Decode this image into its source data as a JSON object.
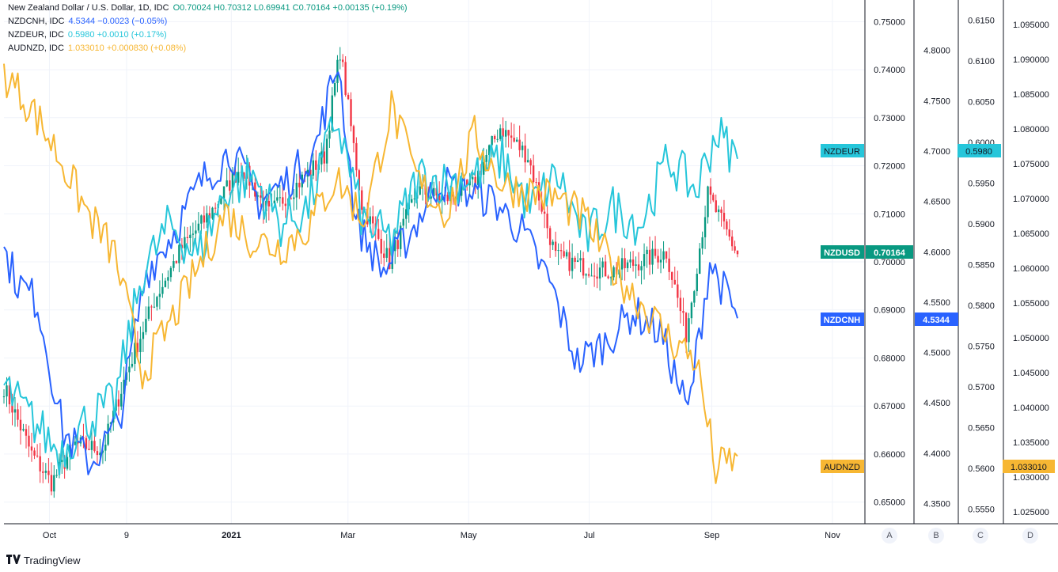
{
  "legend": [
    {
      "symbol": "New Zealand Dollar / U.S. Dollar, 1D, IDC",
      "values": "O0.70024  H0.70312  L0.69941  C0.70164  +0.00135 (+0.19%)",
      "color": "#089981"
    },
    {
      "symbol": "NZDCNH, IDC",
      "values": "4.5344  −0.0023 (−0.05%)",
      "color": "#2962ff"
    },
    {
      "symbol": "NZDEUR, IDC",
      "values": "0.5980  +0.0010 (+0.17%)",
      "color": "#26c6da"
    },
    {
      "symbol": "AUDNZD, IDC",
      "values": "1.033010  +0.000830 (+0.08%)",
      "color": "#f7b733"
    }
  ],
  "time_axis": [
    "Oct",
    "9",
    "2021",
    "Mar",
    "May",
    "Jul",
    "Sep",
    "Nov"
  ],
  "scales": {
    "A": [
      "0.75000",
      "0.74000",
      "0.73000",
      "0.72000",
      "0.71000",
      "0.70000",
      "0.69000",
      "0.68000",
      "0.67000",
      "0.66000",
      "0.65000"
    ],
    "B": [
      "4.8000",
      "4.7500",
      "4.7000",
      "4.6500",
      "4.6000",
      "4.5500",
      "4.5000",
      "4.4500",
      "4.4000",
      "4.3500"
    ],
    "C": [
      "0.6150",
      "0.6100",
      "0.6050",
      "0.6000",
      "0.5950",
      "0.5900",
      "0.5850",
      "0.5800",
      "0.5750",
      "0.5700",
      "0.5650",
      "0.5600",
      "0.5550"
    ],
    "D": [
      "1.095000",
      "1.090000",
      "1.085000",
      "1.080000",
      "1.075000",
      "1.070000",
      "1.065000",
      "1.060000",
      "1.055000",
      "1.050000",
      "1.045000",
      "1.040000",
      "1.035000",
      "1.030000",
      "1.025000"
    ]
  },
  "scale_buttons": [
    "A",
    "B",
    "C",
    "D"
  ],
  "price_labels": {
    "nzdeur_tag": "NZDEUR",
    "nzdeur_val": "0.5980",
    "nzdusd_tag": "NZDUSD",
    "nzdusd_val": "0.70164",
    "nzdcnh_tag": "NZDCNH",
    "nzdcnh_val": "4.5344",
    "audnzd_tag": "AUDNZD",
    "audnzd_val": "1.033010"
  },
  "brand": "TradingView",
  "colors": {
    "up": "#089981",
    "down": "#f23645",
    "nzdcnh": "#2962ff",
    "nzdeur": "#26c6da",
    "audnzd": "#f7b733"
  },
  "chart_data": {
    "type": "line",
    "title": "New Zealand Dollar / U.S. Dollar, 1D, IDC",
    "x_range": [
      "2020-09-08",
      "2021-09-14"
    ],
    "x_ticks": [
      "Oct",
      "9",
      "2021",
      "Mar",
      "May",
      "Jul",
      "Sep",
      "Nov"
    ],
    "grid": true,
    "series": [
      {
        "name": "New Zealand Dollar / U.S. Dollar",
        "style": "candles",
        "scale": "A",
        "ylim": [
          0.6455,
          0.7545
        ],
        "x": [
          "2020-09-08",
          "2020-09-22",
          "2020-10-02",
          "2020-10-14",
          "2020-10-28",
          "2020-11-09",
          "2020-11-23",
          "2020-12-07",
          "2020-12-21",
          "2021-01-06",
          "2021-01-20",
          "2021-02-03",
          "2021-02-17",
          "2021-02-25",
          "2021-03-08",
          "2021-03-22",
          "2021-04-05",
          "2021-04-19",
          "2021-05-03",
          "2021-05-17",
          "2021-05-31",
          "2021-06-14",
          "2021-06-28",
          "2021-07-12",
          "2021-07-26",
          "2021-08-09",
          "2021-08-19",
          "2021-08-30",
          "2021-09-14"
        ],
        "values": [
          0.674,
          0.66,
          0.654,
          0.662,
          0.661,
          0.677,
          0.692,
          0.703,
          0.71,
          0.72,
          0.71,
          0.716,
          0.722,
          0.744,
          0.712,
          0.7,
          0.715,
          0.713,
          0.716,
          0.728,
          0.722,
          0.701,
          0.699,
          0.698,
          0.7,
          0.702,
          0.685,
          0.714,
          0.7016
        ]
      },
      {
        "name": "NZDCNH",
        "style": "line",
        "scale": "B",
        "ylim": [
          4.33,
          4.85
        ],
        "x": [
          "2020-09-08",
          "2020-09-15",
          "2020-09-25",
          "2020-10-08",
          "2020-10-22",
          "2020-11-05",
          "2020-11-19",
          "2020-12-03",
          "2020-12-17",
          "2021-01-01",
          "2021-01-15",
          "2021-01-29",
          "2021-02-12",
          "2021-02-24",
          "2021-03-05",
          "2021-03-19",
          "2021-04-02",
          "2021-04-16",
          "2021-04-30",
          "2021-05-14",
          "2021-05-28",
          "2021-06-11",
          "2021-06-25",
          "2021-07-09",
          "2021-07-23",
          "2021-08-06",
          "2021-08-20",
          "2021-08-31",
          "2021-09-14"
        ],
        "values": [
          4.6,
          4.57,
          4.55,
          4.42,
          4.39,
          4.43,
          4.58,
          4.62,
          4.67,
          4.7,
          4.65,
          4.67,
          4.7,
          4.79,
          4.63,
          4.58,
          4.62,
          4.67,
          4.66,
          4.65,
          4.62,
          4.57,
          4.49,
          4.51,
          4.54,
          4.52,
          4.44,
          4.59,
          4.534
        ]
      },
      {
        "name": "NZDEUR",
        "style": "line",
        "scale": "C",
        "ylim": [
          0.5532,
          0.6175
        ],
        "x": [
          "2020-09-08",
          "2020-09-22",
          "2020-10-06",
          "2020-10-20",
          "2020-11-03",
          "2020-11-17",
          "2020-12-01",
          "2020-12-15",
          "2020-12-29",
          "2021-01-12",
          "2021-01-26",
          "2021-02-09",
          "2021-02-23",
          "2021-03-09",
          "2021-03-23",
          "2021-04-06",
          "2021-04-20",
          "2021-05-04",
          "2021-05-18",
          "2021-06-01",
          "2021-06-15",
          "2021-06-29",
          "2021-07-13",
          "2021-07-27",
          "2021-08-10",
          "2021-08-24",
          "2021-09-03",
          "2021-09-14"
        ],
        "values": [
          0.57,
          0.566,
          0.562,
          0.566,
          0.568,
          0.584,
          0.59,
          0.586,
          0.594,
          0.596,
          0.59,
          0.592,
          0.603,
          0.59,
          0.588,
          0.596,
          0.595,
          0.596,
          0.598,
          0.592,
          0.596,
          0.588,
          0.592,
          0.59,
          0.598,
          0.594,
          0.6013,
          0.598
        ]
      },
      {
        "name": "AUDNZD",
        "style": "line",
        "scale": "D",
        "ylim": [
          1.0233,
          1.0985
        ],
        "x": [
          "2020-09-08",
          "2020-09-22",
          "2020-10-06",
          "2020-10-20",
          "2020-11-03",
          "2020-11-17",
          "2020-12-01",
          "2020-12-15",
          "2020-12-29",
          "2021-01-12",
          "2021-01-26",
          "2021-02-09",
          "2021-02-23",
          "2021-03-09",
          "2021-03-23",
          "2021-04-06",
          "2021-04-20",
          "2021-05-04",
          "2021-05-18",
          "2021-06-01",
          "2021-06-15",
          "2021-06-29",
          "2021-07-13",
          "2021-07-27",
          "2021-08-10",
          "2021-08-24",
          "2021-09-03",
          "2021-09-14"
        ],
        "values": [
          1.088,
          1.083,
          1.076,
          1.068,
          1.062,
          1.045,
          1.052,
          1.06,
          1.068,
          1.064,
          1.063,
          1.066,
          1.073,
          1.067,
          1.083,
          1.072,
          1.068,
          1.079,
          1.072,
          1.071,
          1.07,
          1.067,
          1.06,
          1.055,
          1.05,
          1.047,
          1.031,
          1.033
        ]
      }
    ]
  }
}
